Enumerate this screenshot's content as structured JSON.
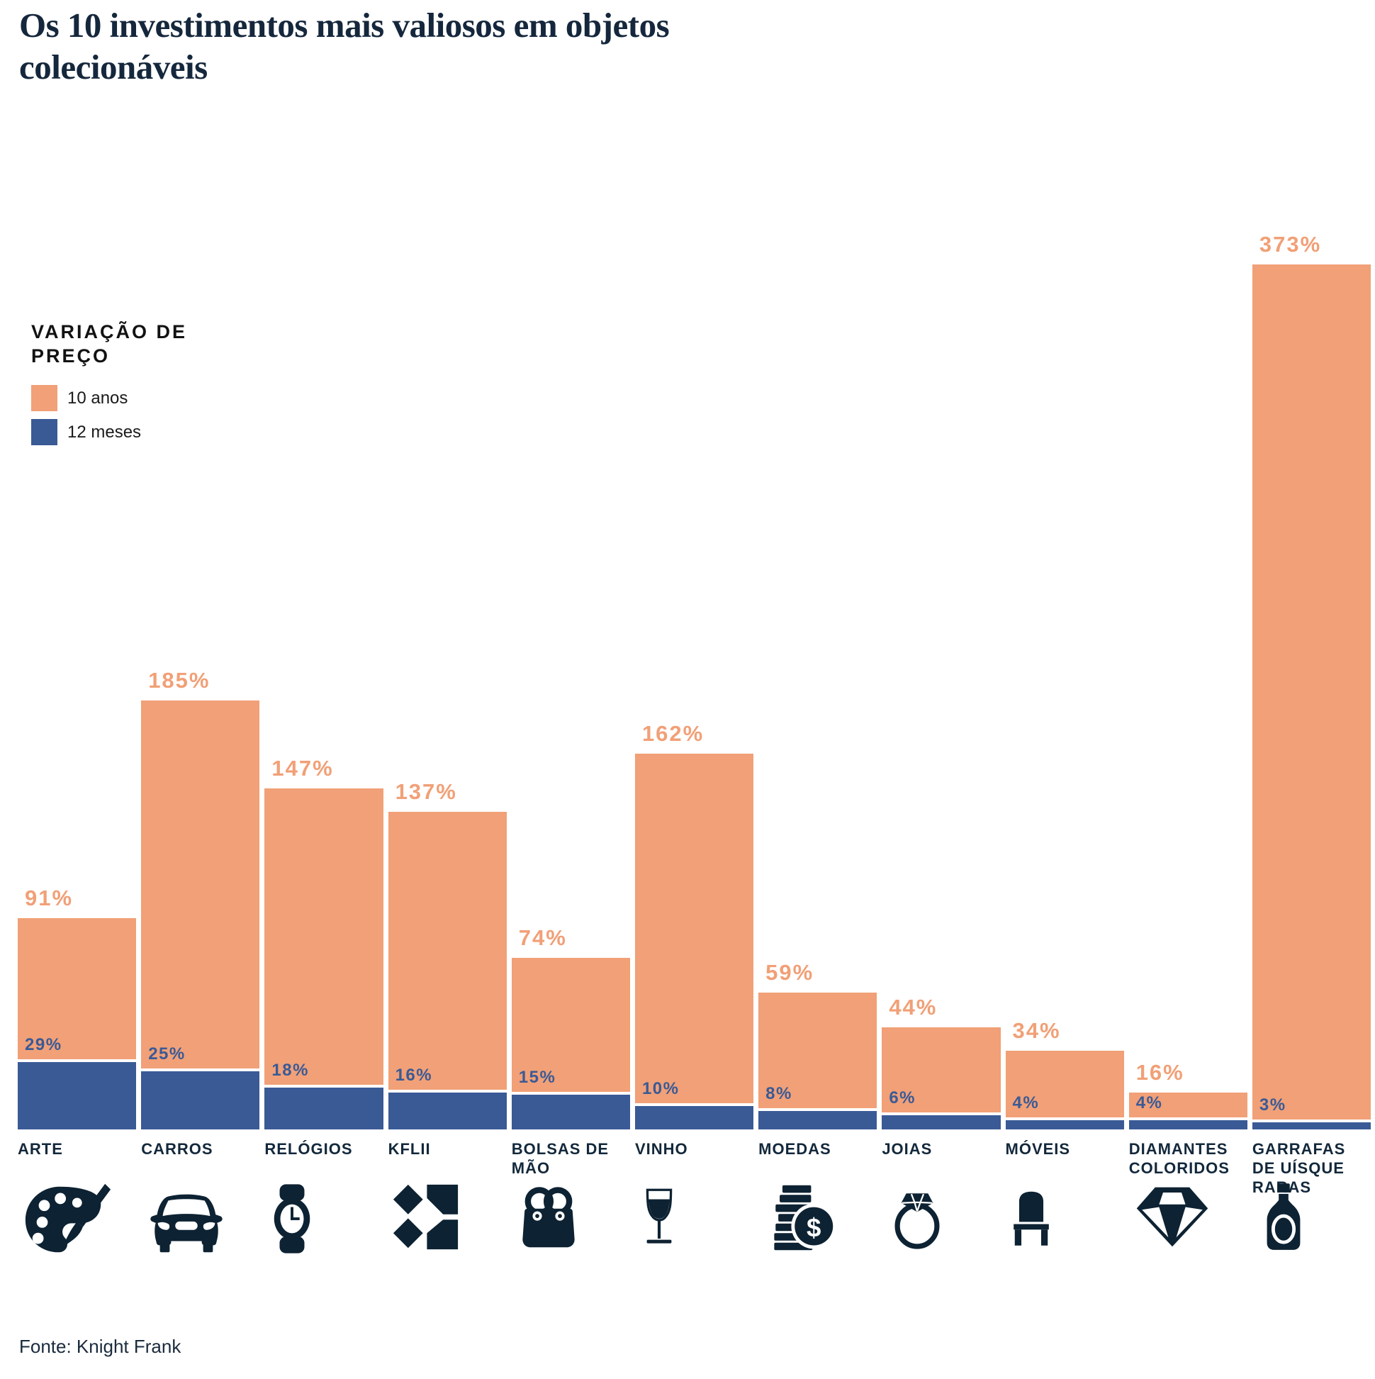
{
  "title_lines": [
    "Os 10 investimentos mais valiosos em objetos",
    "colecionáveis"
  ],
  "legend": {
    "heading_lines": [
      "VARIAÇÃO DE",
      "PREÇO"
    ],
    "items": [
      {
        "label": "10 anos",
        "color": "#F1A077"
      },
      {
        "label": "12 meses",
        "color": "#3A5A96"
      }
    ]
  },
  "footer": {
    "source": "Fonte: Knight Frank"
  },
  "colors": {
    "orange": "#F1A077",
    "blue": "#3A5A96",
    "navy_text": "#13283B",
    "icon_navy": "#0D2232",
    "background": "#FFFFFF"
  },
  "chart_data": {
    "type": "bar",
    "title": "Os 10 investimentos mais valiosos em objetos colecionáveis",
    "unit": "%",
    "categories": [
      "ARTE",
      "CARROS",
      "RELÓGIOS",
      "KFLII",
      "BOLSAS DE MÃO",
      "VINHO",
      "MOEDAS",
      "JOIAS",
      "MÓVEIS",
      "DIAMANTES COLORIDOS",
      "GARRAFAS DE UÍSQUE RARAS"
    ],
    "series": [
      {
        "name": "10 anos",
        "color": "#F1A077",
        "values": [
          91,
          185,
          147,
          137,
          74,
          162,
          59,
          44,
          34,
          16,
          373
        ]
      },
      {
        "name": "12 meses",
        "color": "#3A5A96",
        "values": [
          29,
          25,
          18,
          16,
          15,
          10,
          8,
          6,
          4,
          4,
          3
        ]
      }
    ],
    "data_labels": {
      "10 anos": [
        "91%",
        "185%",
        "147%",
        "137%",
        "74%",
        "162%",
        "59%",
        "44%",
        "34%",
        "16%",
        "373%"
      ],
      "12 meses": [
        "29%",
        "25%",
        "18%",
        "16%",
        "15%",
        "10%",
        "8%",
        "6%",
        "4%",
        "4%",
        "3%"
      ]
    },
    "icons": [
      "palette-icon",
      "car-icon",
      "watch-icon",
      "kflii-logo-icon",
      "handbag-icon",
      "wine-glass-icon",
      "coins-icon",
      "ring-icon",
      "chair-icon",
      "diamond-icon",
      "whisky-bottle-icon"
    ],
    "ylim": [
      0,
      373
    ],
    "grid": false,
    "legend_position": "upper-left",
    "source": "Fonte: Knight Frank"
  }
}
